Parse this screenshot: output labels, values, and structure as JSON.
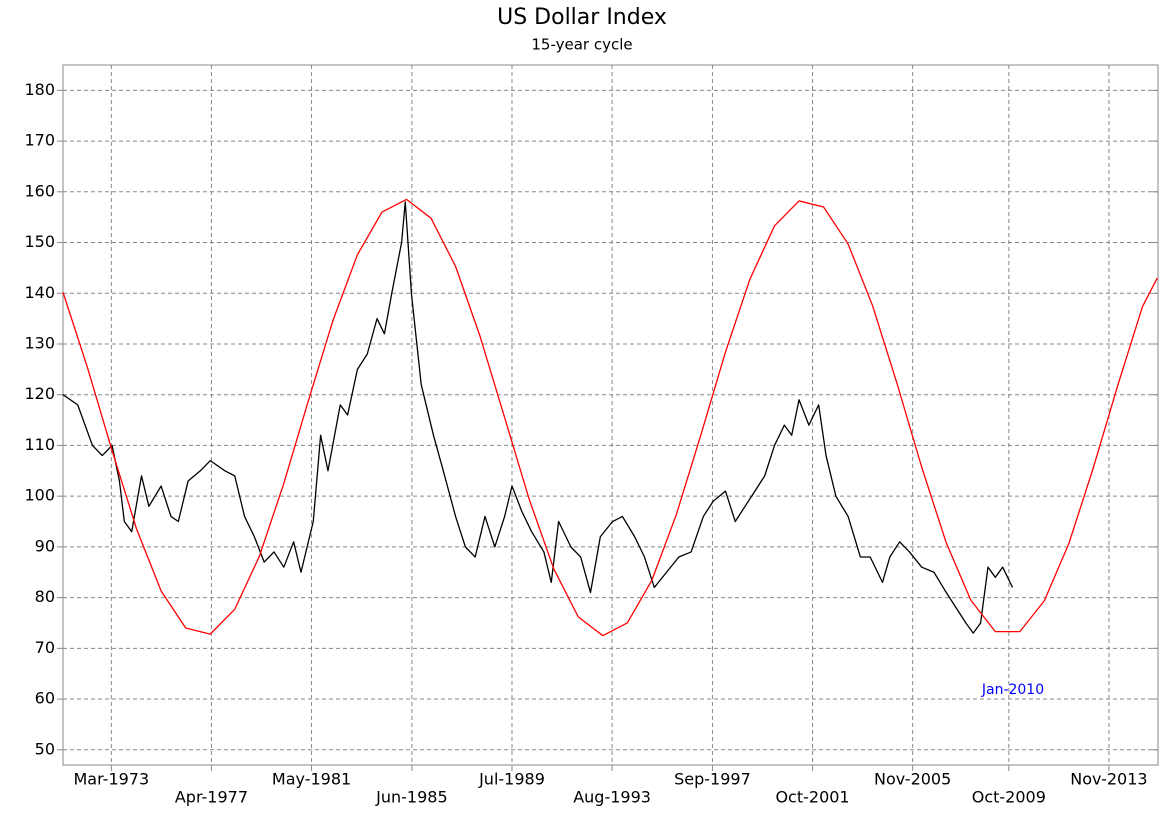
{
  "chart_data": {
    "type": "line",
    "title": "US Dollar Index",
    "subtitle": "15-year cycle",
    "annotation": "Jan-2010",
    "xlim": [
      1971.2,
      2015.83
    ],
    "ylim": [
      47,
      185
    ],
    "xticks": [
      {
        "value": 1973.17,
        "label": "Mar-1973"
      },
      {
        "value": 1977.25,
        "label": "Apr-1977"
      },
      {
        "value": 1981.33,
        "label": "May-1981"
      },
      {
        "value": 1985.42,
        "label": "Jun-1985"
      },
      {
        "value": 1989.5,
        "label": "Jul-1989"
      },
      {
        "value": 1993.58,
        "label": "Aug-1993"
      },
      {
        "value": 1997.67,
        "label": "Sep-1997"
      },
      {
        "value": 2001.75,
        "label": "Oct-2001"
      },
      {
        "value": 2005.83,
        "label": "Nov-2005"
      },
      {
        "value": 2009.75,
        "label": "Oct-2009"
      },
      {
        "value": 2013.83,
        "label": "Nov-2013"
      }
    ],
    "yticks": [
      50,
      60,
      70,
      80,
      90,
      100,
      110,
      120,
      130,
      140,
      150,
      160,
      170,
      180
    ],
    "grid": true,
    "series": [
      {
        "name": "US Dollar Index",
        "color": "#000000",
        "x": [
          1971.2,
          1971.8,
          1972.4,
          1972.8,
          1973.2,
          1973.5,
          1973.7,
          1974.0,
          1974.4,
          1974.7,
          1975.2,
          1975.6,
          1975.9,
          1976.3,
          1976.8,
          1977.2,
          1977.8,
          1978.2,
          1978.6,
          1979.0,
          1979.4,
          1979.8,
          1980.2,
          1980.6,
          1980.9,
          1981.4,
          1981.7,
          1982.0,
          1982.5,
          1982.8,
          1983.2,
          1983.6,
          1984.0,
          1984.3,
          1984.6,
          1985.0,
          1985.15,
          1985.4,
          1985.8,
          1986.3,
          1986.7,
          1987.2,
          1987.6,
          1988.0,
          1988.4,
          1988.8,
          1989.2,
          1989.5,
          1989.9,
          1990.3,
          1990.8,
          1991.1,
          1991.4,
          1991.9,
          1992.3,
          1992.7,
          1993.1,
          1993.6,
          1994.0,
          1994.5,
          1994.9,
          1995.3,
          1995.8,
          1996.3,
          1996.8,
          1997.3,
          1997.7,
          1998.2,
          1998.6,
          1999.0,
          1999.4,
          1999.8,
          2000.2,
          2000.6,
          2000.9,
          2001.2,
          2001.6,
          2002.0,
          2002.3,
          2002.7,
          2003.2,
          2003.7,
          2004.1,
          2004.6,
          2004.9,
          2005.3,
          2005.7,
          2006.2,
          2006.7,
          2007.2,
          2007.6,
          2008.0,
          2008.3,
          2008.6,
          2008.9,
          2009.2,
          2009.5,
          2009.9
        ],
        "values": [
          120,
          118,
          110,
          108,
          110,
          103,
          95,
          93,
          104,
          98,
          102,
          96,
          95,
          103,
          105,
          107,
          105,
          104,
          96,
          92,
          87,
          89,
          86,
          91,
          85,
          95,
          112,
          105,
          118,
          116,
          125,
          128,
          135,
          132,
          140,
          150,
          158,
          140,
          122,
          112,
          105,
          96,
          90,
          88,
          96,
          90,
          96,
          102,
          97,
          93,
          89,
          83,
          95,
          90,
          88,
          81,
          92,
          95,
          96,
          92,
          88,
          82,
          85,
          88,
          89,
          96,
          99,
          101,
          95,
          98,
          101,
          104,
          110,
          114,
          112,
          119,
          114,
          118,
          108,
          100,
          96,
          88,
          88,
          83,
          88,
          91,
          89,
          86,
          85,
          81,
          78,
          75,
          73,
          75,
          86,
          84,
          86,
          82
        ]
      },
      {
        "name": "15-year cycle",
        "color": "#ff0000",
        "x": [
          1971.2,
          1972.2,
          1973.2,
          1974.2,
          1975.2,
          1976.2,
          1977.2,
          1978.2,
          1979.2,
          1980.2,
          1981.2,
          1982.2,
          1983.2,
          1984.2,
          1985.2,
          1986.2,
          1987.2,
          1988.2,
          1989.2,
          1990.2,
          1991.2,
          1992.2,
          1993.2,
          1994.2,
          1995.2,
          1996.2,
          1997.2,
          1998.2,
          1999.2,
          2000.2,
          2001.2,
          2002.2,
          2003.2,
          2004.2,
          2005.2,
          2006.2,
          2007.2,
          2008.2,
          2009.2,
          2010.2,
          2011.2,
          2012.2,
          2013.2,
          2014.2,
          2015.2,
          2015.8
        ],
        "values": [
          140.2,
          125.3,
          109.0,
          93.5,
          81.3,
          74.0,
          72.8,
          77.7,
          88.1,
          102.5,
          118.8,
          134.6,
          147.6,
          156.0,
          158.5,
          154.8,
          145.3,
          131.5,
          115.5,
          99.4,
          85.7,
          76.2,
          72.5,
          75.0,
          83.4,
          96.4,
          112.1,
          128.4,
          142.8,
          153.3,
          158.2,
          157.0,
          149.7,
          137.5,
          122.1,
          105.7,
          90.8,
          79.5,
          73.3,
          73.3,
          79.4,
          90.7,
          105.7,
          122.0,
          137.4,
          143
        ]
      }
    ]
  }
}
